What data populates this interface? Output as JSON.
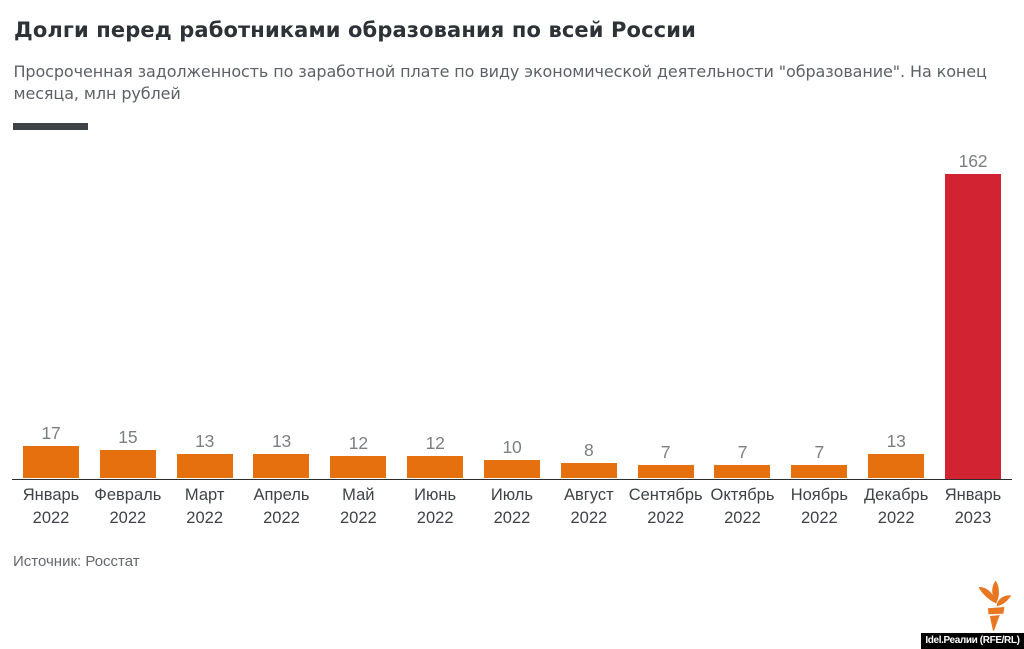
{
  "chart_data": {
    "type": "bar",
    "title": "Долги перед работниками образования по всей России",
    "subtitle": "Просроченная задолженность по заработной плате по виду экономической деятельности \"образование\". На конец месяца, млн рублей",
    "categories": [
      {
        "month": "Январь",
        "year": "2022"
      },
      {
        "month": "Февраль",
        "year": "2022"
      },
      {
        "month": "Март",
        "year": "2022"
      },
      {
        "month": "Апрель",
        "year": "2022"
      },
      {
        "month": "Май",
        "year": "2022"
      },
      {
        "month": "Июнь",
        "year": "2022"
      },
      {
        "month": "Июль",
        "year": "2022"
      },
      {
        "month": "Август",
        "year": "2022"
      },
      {
        "month": "Сентябрь",
        "year": "2022"
      },
      {
        "month": "Октябрь",
        "year": "2022"
      },
      {
        "month": "Ноябрь",
        "year": "2022"
      },
      {
        "month": "Декабрь",
        "year": "2022"
      },
      {
        "month": "Январь",
        "year": "2023"
      }
    ],
    "values": [
      17,
      15,
      13,
      13,
      12,
      12,
      10,
      8,
      7,
      7,
      7,
      13,
      162
    ],
    "highlight_index": 12,
    "colors": {
      "bar": "#e7700e",
      "highlight": "#d12332"
    },
    "ylabel": "",
    "xlabel": "",
    "grid": false,
    "legend": "none",
    "value_labels": true
  },
  "source": {
    "label": "Источник: Росстат"
  },
  "footer": {
    "credit": "Idel.Реалии (RFE/RL)",
    "logo": "rferl-torch-icon",
    "logo_color": "#e87722"
  }
}
